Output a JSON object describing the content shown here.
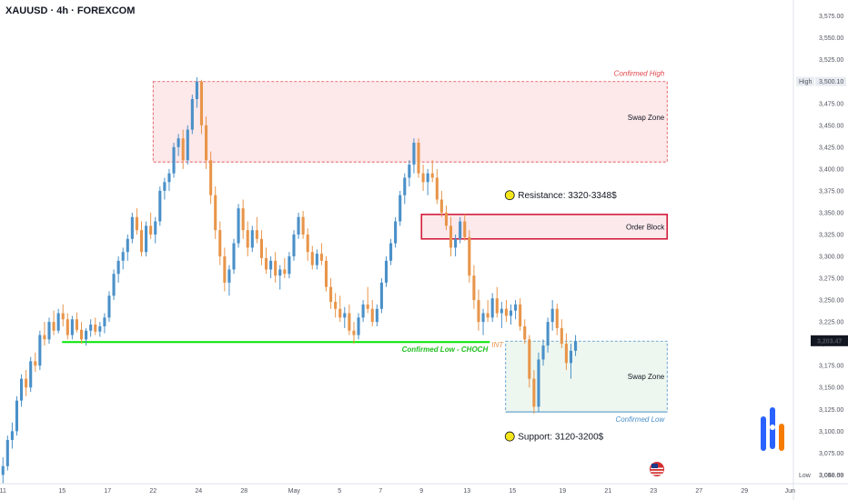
{
  "header": {
    "title": "XAUUSD · 4h · FOREXCOM"
  },
  "colors": {
    "up": "#4a90c8",
    "down": "#e8954a",
    "background": "#ffffff",
    "resistance_fill": "#fde8ea",
    "resistance_line": "#e0474c",
    "order_block_fill": "#fce9ec",
    "order_block_border": "#d21d3a",
    "support_fill": "#eef7ef",
    "support_line": "#4a90c8",
    "choch_line": "#00e600",
    "choch_text": "#1fbf1f",
    "callout_dot": "#f5e61c",
    "price_badge": "#131722",
    "high_badge": "#e8ecf1"
  },
  "chart_data": {
    "type": "candlestick",
    "symbol": "XAUUSD",
    "timeframe": "4h",
    "y_axis": {
      "ylim": [
        3040,
        3585
      ],
      "ticks": [
        "3,575.00",
        "3,550.00",
        "3,525.00",
        "3,500.00",
        "3,475.00",
        "3,450.00",
        "3,425.00",
        "3,400.00",
        "3,375.00",
        "3,350.00",
        "3,325.00",
        "3,300.00",
        "3,275.00",
        "3,250.00",
        "3,225.00",
        "3,200.00",
        "3,175.00",
        "3,150.00",
        "3,125.00",
        "3,100.00",
        "3,075.00",
        "3,050.00"
      ],
      "tick_values": [
        3575,
        3550,
        3525,
        3500,
        3475,
        3450,
        3425,
        3400,
        3375,
        3350,
        3325,
        3300,
        3275,
        3250,
        3225,
        3200,
        3175,
        3150,
        3125,
        3100,
        3075,
        3050
      ]
    },
    "x_axis": {
      "labels": [
        "11",
        "15",
        "17",
        "22",
        "24",
        "28",
        "May",
        "5",
        "7",
        "9",
        "13",
        "15",
        "19",
        "21",
        "23",
        "27",
        "29",
        "Jun"
      ],
      "label_index": [
        0,
        26,
        46,
        66,
        86,
        106,
        128,
        148,
        166,
        184,
        204,
        224,
        246,
        266,
        286,
        306,
        326,
        346
      ],
      "total_slots": 348
    },
    "current_price": {
      "label": "3,203.47",
      "value": 3203.47
    },
    "high_marker": {
      "label": "High",
      "price_label": "3,500.10",
      "value": 3500.1
    },
    "low_marker": {
      "label": "Low",
      "price_label": "3,048.69",
      "value": 3048.69
    },
    "zones": [
      {
        "name": "Swap Zone",
        "top": 3500,
        "bottom": 3408,
        "tag": "Confirmed High",
        "start_index": 66,
        "end_index": 292
      },
      {
        "name": "Order Block",
        "top": 3348,
        "bottom": 3320,
        "start_index": 184,
        "end_index": 292
      },
      {
        "name": "Swap Zone",
        "top": 3203,
        "bottom": 3122,
        "tag": "Confirmed Low",
        "start_index": 221,
        "end_index": 292
      }
    ],
    "choch": {
      "label": "Confirmed Low - CHOCH",
      "price": 3202,
      "start_index": 26,
      "end_index": 214,
      "short_label": "INT"
    },
    "callouts": [
      {
        "text": "Resistance: 3320-3348$",
        "price": 3370,
        "index": 222
      },
      {
        "text": "Support: 3120-3200$",
        "price": 3094,
        "index": 222
      }
    ],
    "candles": [
      [
        3050,
        3070,
        3040,
        3060
      ],
      [
        3060,
        3095,
        3055,
        3090
      ],
      [
        3090,
        3110,
        3080,
        3100
      ],
      [
        3100,
        3140,
        3095,
        3135
      ],
      [
        3135,
        3165,
        3128,
        3160
      ],
      [
        3160,
        3170,
        3140,
        3150
      ],
      [
        3150,
        3185,
        3145,
        3180
      ],
      [
        3180,
        3190,
        3168,
        3175
      ],
      [
        3175,
        3215,
        3170,
        3210
      ],
      [
        3210,
        3225,
        3198,
        3205
      ],
      [
        3205,
        3230,
        3200,
        3225
      ],
      [
        3225,
        3238,
        3210,
        3215
      ],
      [
        3215,
        3240,
        3212,
        3235
      ],
      [
        3235,
        3245,
        3220,
        3228
      ],
      [
        3228,
        3235,
        3205,
        3210
      ],
      [
        3210,
        3232,
        3205,
        3228
      ],
      [
        3228,
        3236,
        3213,
        3216
      ],
      [
        3216,
        3225,
        3200,
        3205
      ],
      [
        3205,
        3218,
        3198,
        3215
      ],
      [
        3215,
        3228,
        3208,
        3222
      ],
      [
        3222,
        3230,
        3210,
        3214
      ],
      [
        3214,
        3225,
        3208,
        3220
      ],
      [
        3220,
        3235,
        3212,
        3230
      ],
      [
        3230,
        3260,
        3225,
        3255
      ],
      [
        3255,
        3285,
        3250,
        3280
      ],
      [
        3280,
        3300,
        3270,
        3295
      ],
      [
        3295,
        3310,
        3285,
        3305
      ],
      [
        3305,
        3325,
        3295,
        3320
      ],
      [
        3320,
        3350,
        3315,
        3345
      ],
      [
        3345,
        3355,
        3325,
        3330
      ],
      [
        3330,
        3340,
        3300,
        3305
      ],
      [
        3305,
        3340,
        3300,
        3335
      ],
      [
        3335,
        3350,
        3320,
        3325
      ],
      [
        3325,
        3345,
        3315,
        3340
      ],
      [
        3340,
        3380,
        3335,
        3375
      ],
      [
        3375,
        3390,
        3365,
        3385
      ],
      [
        3385,
        3400,
        3375,
        3395
      ],
      [
        3395,
        3430,
        3390,
        3425
      ],
      [
        3425,
        3440,
        3415,
        3435
      ],
      [
        3435,
        3445,
        3400,
        3410
      ],
      [
        3410,
        3450,
        3405,
        3445
      ],
      [
        3445,
        3485,
        3440,
        3480
      ],
      [
        3480,
        3505,
        3470,
        3500
      ],
      [
        3500,
        3502,
        3440,
        3450
      ],
      [
        3450,
        3460,
        3400,
        3410
      ],
      [
        3410,
        3420,
        3360,
        3370
      ],
      [
        3370,
        3380,
        3320,
        3330
      ],
      [
        3330,
        3340,
        3290,
        3300
      ],
      [
        3300,
        3310,
        3260,
        3270
      ],
      [
        3270,
        3290,
        3255,
        3285
      ],
      [
        3285,
        3320,
        3280,
        3315
      ],
      [
        3315,
        3360,
        3310,
        3355
      ],
      [
        3355,
        3365,
        3320,
        3330
      ],
      [
        3330,
        3340,
        3300,
        3310
      ],
      [
        3310,
        3335,
        3305,
        3330
      ],
      [
        3330,
        3345,
        3315,
        3320
      ],
      [
        3320,
        3330,
        3290,
        3298
      ],
      [
        3298,
        3310,
        3280,
        3285
      ],
      [
        3285,
        3300,
        3275,
        3295
      ],
      [
        3295,
        3305,
        3270,
        3278
      ],
      [
        3278,
        3290,
        3262,
        3285
      ],
      [
        3285,
        3298,
        3275,
        3280
      ],
      [
        3280,
        3305,
        3275,
        3300
      ],
      [
        3300,
        3330,
        3295,
        3325
      ],
      [
        3325,
        3350,
        3320,
        3345
      ],
      [
        3345,
        3352,
        3320,
        3325
      ],
      [
        3325,
        3332,
        3295,
        3305
      ],
      [
        3305,
        3312,
        3285,
        3290
      ],
      [
        3290,
        3308,
        3285,
        3303
      ],
      [
        3303,
        3315,
        3290,
        3295
      ],
      [
        3295,
        3300,
        3260,
        3265
      ],
      [
        3265,
        3275,
        3240,
        3248
      ],
      [
        3248,
        3258,
        3230,
        3240
      ],
      [
        3240,
        3255,
        3225,
        3230
      ],
      [
        3230,
        3242,
        3218,
        3235
      ],
      [
        3235,
        3245,
        3210,
        3215
      ],
      [
        3215,
        3225,
        3200,
        3210
      ],
      [
        3210,
        3235,
        3205,
        3230
      ],
      [
        3230,
        3250,
        3225,
        3245
      ],
      [
        3245,
        3265,
        3235,
        3240
      ],
      [
        3240,
        3250,
        3220,
        3225
      ],
      [
        3225,
        3245,
        3220,
        3240
      ],
      [
        3240,
        3275,
        3235,
        3270
      ],
      [
        3270,
        3300,
        3265,
        3295
      ],
      [
        3295,
        3320,
        3290,
        3315
      ],
      [
        3315,
        3345,
        3310,
        3340
      ],
      [
        3340,
        3375,
        3335,
        3370
      ],
      [
        3370,
        3395,
        3360,
        3390
      ],
      [
        3390,
        3410,
        3380,
        3405
      ],
      [
        3405,
        3435,
        3395,
        3430
      ],
      [
        3430,
        3435,
        3390,
        3395
      ],
      [
        3395,
        3405,
        3375,
        3385
      ],
      [
        3385,
        3400,
        3370,
        3395
      ],
      [
        3395,
        3410,
        3385,
        3390
      ],
      [
        3390,
        3400,
        3360,
        3365
      ],
      [
        3365,
        3375,
        3345,
        3350
      ],
      [
        3350,
        3358,
        3330,
        3335
      ],
      [
        3335,
        3345,
        3300,
        3310
      ],
      [
        3310,
        3325,
        3300,
        3320
      ],
      [
        3320,
        3345,
        3315,
        3340
      ],
      [
        3340,
        3348,
        3318,
        3322
      ],
      [
        3322,
        3330,
        3270,
        3278
      ],
      [
        3278,
        3290,
        3240,
        3250
      ],
      [
        3250,
        3262,
        3215,
        3225
      ],
      [
        3225,
        3240,
        3210,
        3235
      ],
      [
        3235,
        3250,
        3225,
        3230
      ],
      [
        3230,
        3258,
        3225,
        3252
      ],
      [
        3252,
        3265,
        3230,
        3235
      ],
      [
        3235,
        3248,
        3218,
        3240
      ],
      [
        3240,
        3250,
        3225,
        3232
      ],
      [
        3232,
        3245,
        3222,
        3238
      ],
      [
        3238,
        3250,
        3228,
        3245
      ],
      [
        3245,
        3252,
        3215,
        3220
      ],
      [
        3220,
        3228,
        3200,
        3205
      ],
      [
        3205,
        3210,
        3150,
        3160
      ],
      [
        3160,
        3170,
        3120,
        3128
      ],
      [
        3128,
        3190,
        3122,
        3182
      ],
      [
        3182,
        3205,
        3175,
        3198
      ],
      [
        3198,
        3230,
        3190,
        3225
      ],
      [
        3225,
        3250,
        3215,
        3240
      ],
      [
        3240,
        3246,
        3210,
        3218
      ],
      [
        3218,
        3228,
        3195,
        3200
      ],
      [
        3200,
        3212,
        3170,
        3178
      ],
      [
        3178,
        3200,
        3160,
        3192
      ],
      [
        3192,
        3210,
        3186,
        3203
      ]
    ]
  }
}
